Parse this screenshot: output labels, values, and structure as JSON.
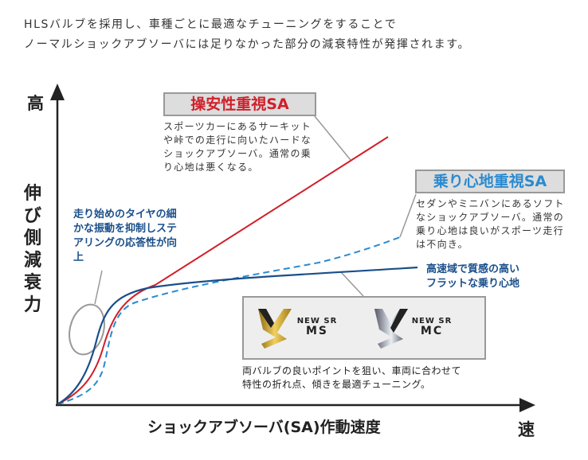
{
  "intro": {
    "line1": "HLSバルブを採用し、車種ごとに最適なチューニングをすることで",
    "line2": "ノーマルショックアブソーバには足りなかった部分の減衰特性が発揮されます。"
  },
  "axes": {
    "y_high": "高",
    "y_label": "伸び側減衰力",
    "x_label": "ショックアブソーバ(SA)作動速度",
    "x_high": "速"
  },
  "sport": {
    "title": "操安性重視SA",
    "desc": "スポーツカーにあるサーキットや峠での走行に向いたハードなショックアブソーバ。通常の乗り心地は悪くなる。",
    "color": "#d0202a"
  },
  "comfort": {
    "title": "乗り心地重視SA",
    "desc": "セダンやミニバンにあるソフトなショックアブソーバ。通常の乗り心地は良いがスポーツ走行は不向き。",
    "color": "#2a8ad0"
  },
  "note_low": "走り始めのタイヤの細かな振動を抑制しステアリングの応答性が向上",
  "note_high": {
    "line1": "高速域で質感の高い",
    "line2": "フラットな乗り心地"
  },
  "valves": [
    {
      "top": "NEW SR",
      "bottom": "MS"
    },
    {
      "top": "NEW SR",
      "bottom": "MC"
    }
  ],
  "valve_desc": {
    "line1": "両バルブの良いポイントを狙い、車両に合わせて",
    "line2": "特性の折れ点、傾きを最適チューニング。"
  },
  "new_sr_color": "#1a4f8a"
}
